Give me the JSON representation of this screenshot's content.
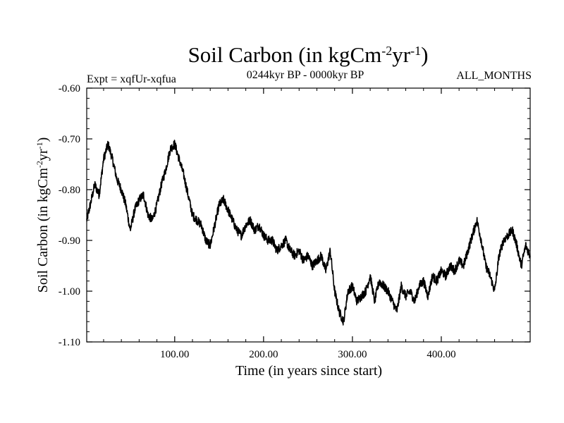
{
  "chart_data": {
    "type": "line",
    "title": "Soil Carbon (in kgCm",
    "title_sup1": "-2",
    "title_mid": "yr",
    "title_sup2": "-1",
    "title_end": ")",
    "subtitle_left": "Expt = xqfUr-xqfua",
    "subtitle_center": "0244kyr BP - 0000kyr BP",
    "subtitle_right": "ALL_MONTHS",
    "xlabel": "Time (in years since start)",
    "ylabel": "Soil Carbon (in kgCm",
    "ylabel_sup1": "-2",
    "ylabel_mid": "yr",
    "ylabel_sup2": "-1",
    "ylabel_end": ")",
    "xlim": [
      1,
      500
    ],
    "ylim": [
      -1.1,
      -0.6
    ],
    "xticks": [
      100,
      200,
      300,
      400
    ],
    "xtick_labels": [
      "100.00",
      "200.00",
      "300.00",
      "400.00"
    ],
    "yticks": [
      -0.6,
      -0.7,
      -0.8,
      -0.9,
      -1.0,
      -1.1
    ],
    "ytick_labels": [
      "-0.60",
      "-0.70",
      "-0.80",
      "-0.90",
      "-1.00",
      "-1.10"
    ],
    "color": "#000000",
    "series": [
      {
        "name": "Soil Carbon",
        "x": [
          1,
          5,
          10,
          15,
          20,
          25,
          30,
          35,
          40,
          45,
          50,
          55,
          60,
          65,
          70,
          75,
          80,
          85,
          90,
          95,
          100,
          105,
          110,
          115,
          120,
          125,
          130,
          135,
          140,
          145,
          150,
          155,
          160,
          165,
          170,
          175,
          180,
          185,
          190,
          195,
          200,
          205,
          210,
          215,
          220,
          225,
          230,
          235,
          240,
          245,
          250,
          255,
          260,
          265,
          270,
          275,
          280,
          285,
          290,
          295,
          300,
          305,
          310,
          315,
          320,
          325,
          330,
          335,
          340,
          345,
          350,
          355,
          360,
          365,
          370,
          375,
          380,
          385,
          390,
          395,
          400,
          405,
          410,
          415,
          420,
          425,
          430,
          435,
          440,
          445,
          450,
          455,
          460,
          465,
          470,
          475,
          480,
          485,
          490,
          495,
          500
        ],
        "values": [
          -0.86,
          -0.83,
          -0.79,
          -0.81,
          -0.74,
          -0.71,
          -0.74,
          -0.78,
          -0.8,
          -0.83,
          -0.88,
          -0.84,
          -0.82,
          -0.81,
          -0.85,
          -0.86,
          -0.83,
          -0.79,
          -0.76,
          -0.72,
          -0.71,
          -0.74,
          -0.77,
          -0.81,
          -0.85,
          -0.86,
          -0.87,
          -0.9,
          -0.91,
          -0.87,
          -0.83,
          -0.82,
          -0.84,
          -0.86,
          -0.88,
          -0.89,
          -0.87,
          -0.86,
          -0.88,
          -0.87,
          -0.89,
          -0.9,
          -0.9,
          -0.92,
          -0.91,
          -0.9,
          -0.92,
          -0.93,
          -0.92,
          -0.94,
          -0.93,
          -0.95,
          -0.94,
          -0.93,
          -0.96,
          -0.92,
          -1.0,
          -1.04,
          -1.06,
          -1.0,
          -0.99,
          -1.02,
          -1.01,
          -1.0,
          -0.97,
          -1.02,
          -0.98,
          -0.99,
          -1.0,
          -1.02,
          -1.04,
          -0.99,
          -1.01,
          -1.0,
          -1.02,
          -0.99,
          -0.98,
          -1.01,
          -0.97,
          -0.98,
          -0.96,
          -0.97,
          -0.95,
          -0.96,
          -0.94,
          -0.95,
          -0.92,
          -0.89,
          -0.86,
          -0.9,
          -0.95,
          -0.97,
          -1.0,
          -0.93,
          -0.9,
          -0.89,
          -0.88,
          -0.91,
          -0.95,
          -0.91,
          -0.93
        ]
      }
    ]
  }
}
